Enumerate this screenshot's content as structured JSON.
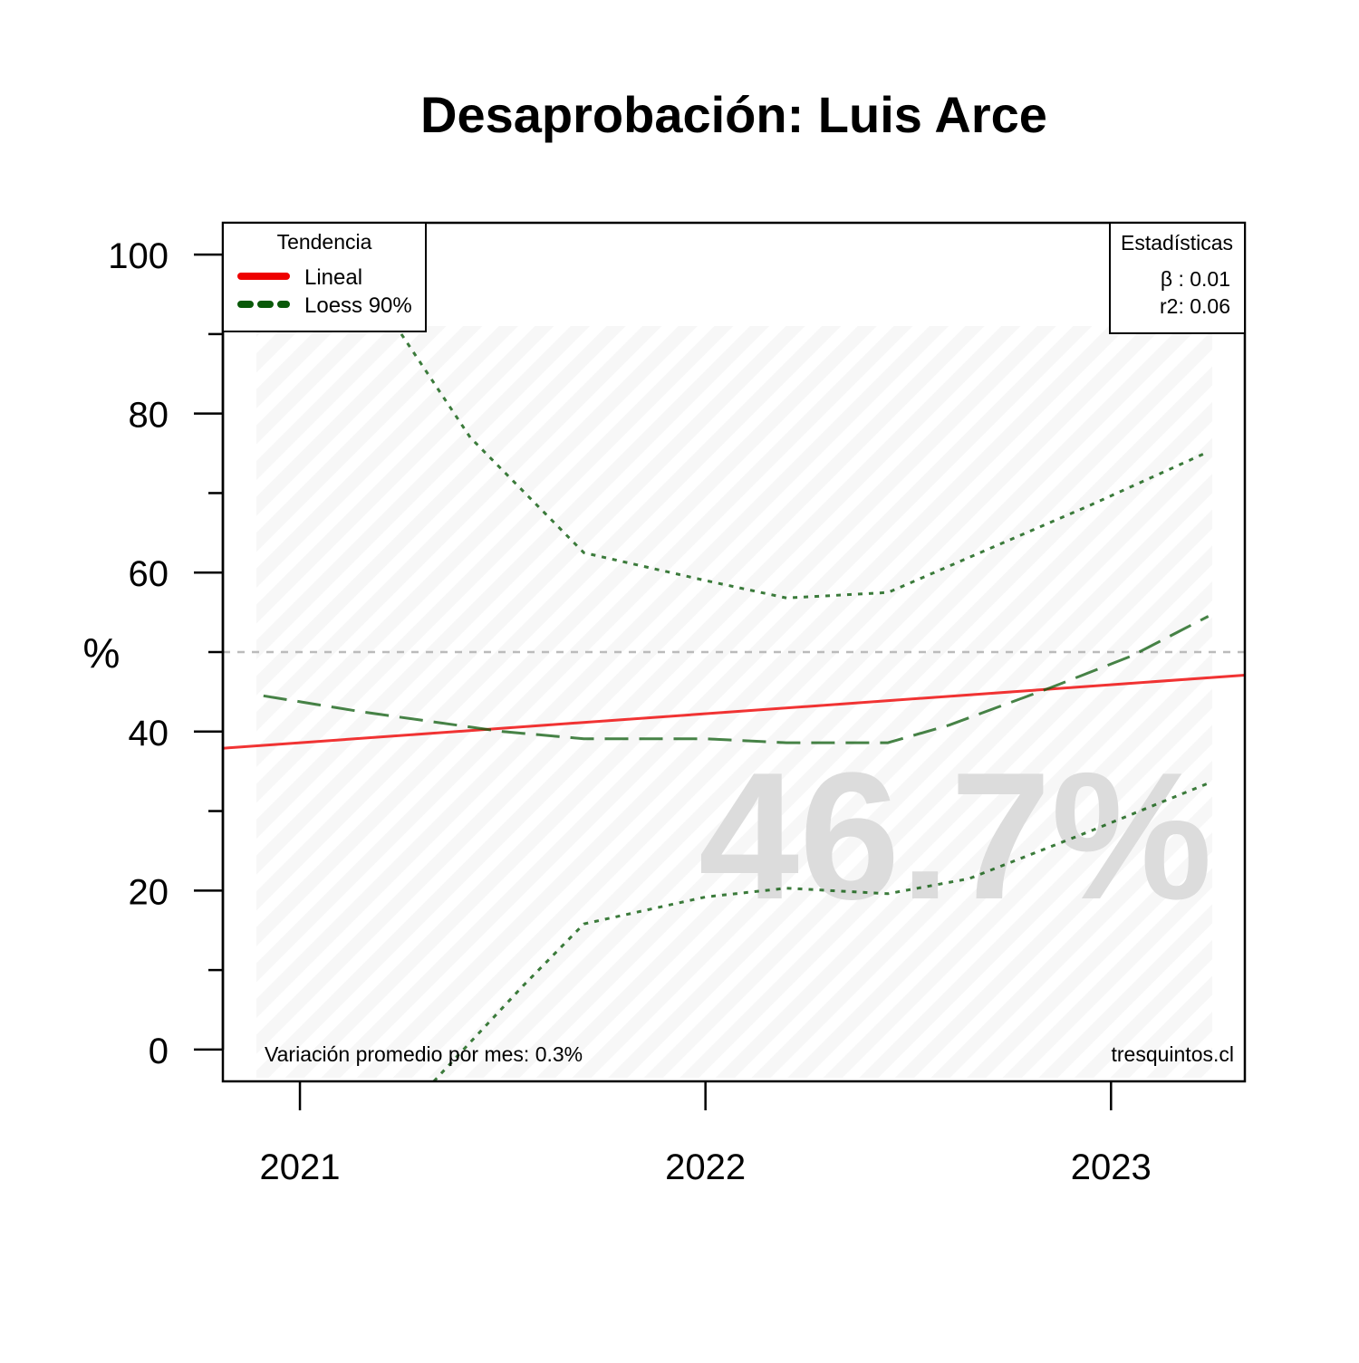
{
  "chart_data": {
    "type": "line",
    "title": "Desaprobación: Luis Arce",
    "ylabel": "%",
    "xlabel": "",
    "ylim": [
      -4,
      104
    ],
    "xlim": [
      2020.81,
      2023.33
    ],
    "x_ticks": [
      2021,
      2022,
      2023
    ],
    "x_tick_labels": [
      "2021",
      "2022",
      "2023"
    ],
    "y_ticks": [
      0,
      20,
      40,
      60,
      80,
      100
    ],
    "y_minor_ticks": [
      10,
      30,
      50,
      70,
      90
    ],
    "y_tick_labels": [
      "0",
      "20",
      "40",
      "60",
      "80",
      "100"
    ],
    "reference_line": {
      "y": 50,
      "style": "dashed",
      "color": "#bbbbbb"
    },
    "series": [
      {
        "name": "Lineal",
        "kind": "linear-trend",
        "color": "#ee0000",
        "x": [
          2020.81,
          2023.33
        ],
        "y": [
          37.9,
          47.1
        ]
      },
      {
        "name": "Loess 90%",
        "kind": "loess-fit",
        "color": "#0a5a0a",
        "x": [
          2020.91,
          2021.15,
          2021.5,
          2021.7,
          2022.0,
          2022.2,
          2022.45,
          2022.6,
          2022.85,
          2023.05,
          2023.24
        ],
        "y": [
          44.5,
          42.5,
          40.0,
          39.1,
          39.1,
          38.6,
          38.6,
          40.8,
          45.5,
          49.5,
          54.5
        ]
      },
      {
        "kind": "loess-upper",
        "color": "#0a5a0a",
        "x": [
          2021.25,
          2021.42,
          2021.7,
          2022.0,
          2022.2,
          2022.45,
          2022.7,
          2022.95,
          2023.24
        ],
        "y": [
          90.0,
          77.0,
          62.5,
          59.0,
          56.8,
          57.5,
          63.0,
          68.5,
          75.2
        ]
      },
      {
        "kind": "loess-lower",
        "color": "#0a5a0a",
        "x": [
          2021.33,
          2021.55,
          2021.7,
          2022.0,
          2022.2,
          2022.45,
          2022.65,
          2022.95,
          2023.24
        ],
        "y": [
          -4.0,
          8.0,
          15.8,
          19.2,
          20.3,
          19.6,
          21.5,
          27.5,
          33.5
        ]
      }
    ],
    "legend": {
      "title": "Tendencia",
      "position": "top-left",
      "entries": [
        {
          "label": "Lineal",
          "color": "#ee0000",
          "style": "solid"
        },
        {
          "label": "Loess 90%",
          "color": "#0a5a0a",
          "style": "dashed"
        }
      ]
    },
    "stats": {
      "title": "Estadísticas",
      "position": "top-right",
      "beta": "β : 0.01",
      "r2": "r2: 0.06"
    },
    "current_value": "46.7%",
    "note": "Variación promedio por mes: 0.3%",
    "source": "tresquintos.cl",
    "grid": false
  }
}
